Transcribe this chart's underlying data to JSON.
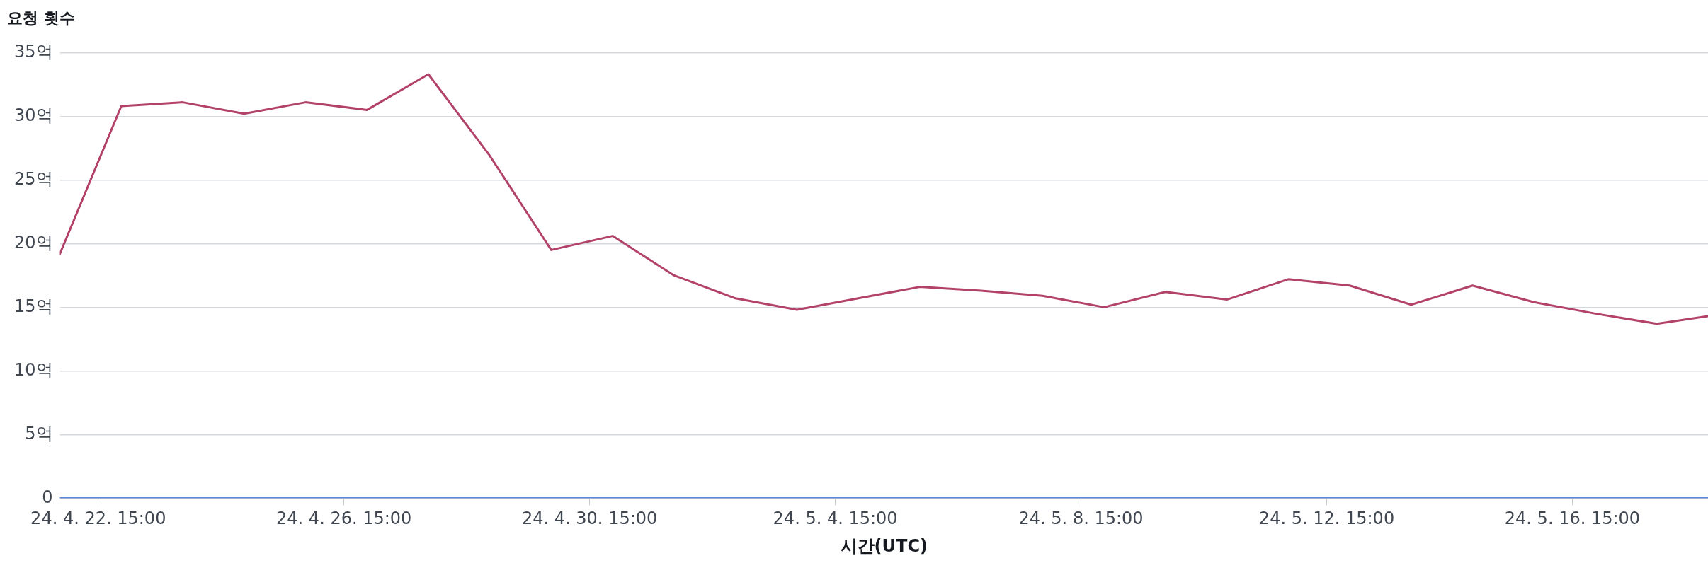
{
  "chart_data": {
    "type": "line",
    "title": "요청 횟수",
    "xlabel": "시간(UTC)",
    "x": [
      "--04-22T00:00",
      "--04-23T00:00",
      "--04-24T00:00",
      "--04-25T00:00",
      "--04-26T00:00",
      "--04-27T00:00",
      "--04-28T00:00",
      "--04-29T00:00",
      "--04-30T00:00",
      "--05-01T00:00",
      "--05-02T00:00",
      "--05-03T00:00",
      "--05-04T00:00",
      "--05-05T00:00",
      "--05-06T00:00",
      "--05-07T00:00",
      "--05-08T00:00",
      "--05-09T00:00",
      "--05-10T00:00",
      "--05-11T00:00",
      "--05-12T00:00",
      "--05-13T00:00",
      "--05-14T00:00",
      "--05-15T00:00",
      "--05-16T00:00",
      "--05-17T00:00",
      "--05-18T00:00",
      "--05-18T20:00"
    ],
    "series": [
      {
        "color": "#b3426a",
        "values": [
          19.2,
          30.8,
          31.1,
          30.2,
          31.1,
          30.5,
          33.3,
          26.9,
          19.5,
          20.6,
          17.5,
          15.7,
          14.8,
          15.7,
          16.6,
          16.3,
          15.9,
          15.0,
          16.2,
          15.6,
          17.2,
          16.7,
          15.2,
          16.7,
          15.4,
          14.5,
          13.7,
          14.3
        ]
      },
      {
        "color": "#5b87d9",
        "values": [
          0,
          0,
          0,
          0,
          0,
          0,
          0,
          0,
          0,
          0,
          0,
          0,
          0,
          0,
          0,
          0,
          0,
          0,
          0,
          0,
          0,
          0,
          0,
          0,
          0,
          0,
          0,
          0
        ]
      }
    ],
    "xlim": [
      "--04-22T00:00",
      "--05-18T20:00"
    ],
    "xticks": [
      {
        "value": "--04-22T15:00",
        "label": "24. 4. 22. 15:00"
      },
      {
        "value": "--04-26T15:00",
        "label": "24. 4. 26. 15:00"
      },
      {
        "value": "--04-30T15:00",
        "label": "24. 4. 30. 15:00"
      },
      {
        "value": "--05-04T15:00",
        "label": "24. 5. 4. 15:00"
      },
      {
        "value": "--05-08T15:00",
        "label": "24. 5. 8. 15:00"
      },
      {
        "value": "--05-12T15:00",
        "label": "24. 5. 12. 15:00"
      },
      {
        "value": "--05-16T15:00",
        "label": "24. 5. 16. 15:00"
      }
    ],
    "ylim": [
      0,
      35
    ],
    "yticks": [
      0,
      {
        "value": 5,
        "label": "5억"
      },
      {
        "value": 10,
        "label": "10억"
      },
      {
        "value": 15,
        "label": "15억"
      },
      {
        "value": 20,
        "label": "20억"
      },
      {
        "value": 25,
        "label": "25억"
      },
      {
        "value": 30,
        "label": "30억"
      },
      {
        "value": 35,
        "label": "35억"
      }
    ],
    "grid": "y",
    "legend": false,
    "marker": "none",
    "line_style": "solid"
  }
}
